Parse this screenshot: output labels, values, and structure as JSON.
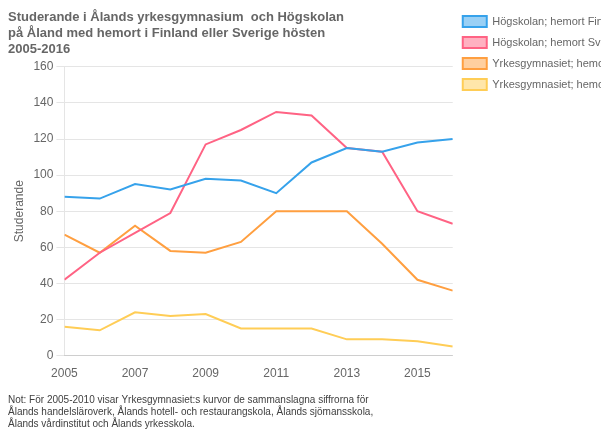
{
  "chart_data": {
    "type": "line",
    "title": "Studerande i Ålands yrkesgymnasium  och Högskolan\npå Åland med hemort i Finland eller Sverige hösten\n2005-2016",
    "ylabel": "Studerande",
    "annotation": "Not: För 2005-2010 visar Yrkesgymnasiet:s kurvor de sammanslagna siffrorna för\nÅlands handelsläroverk, Ålands hotell- och restaurangskola, Ålands sjömansskola,\nÅlands vårdinstitut och Ålands yrkesskola.",
    "x": [
      2005,
      2006,
      2007,
      2008,
      2009,
      2010,
      2011,
      2012,
      2013,
      2014,
      2015,
      2016
    ],
    "series": [
      {
        "name": "Högskolan; hemort Finland",
        "values": [
          88,
          87,
          95,
          92,
          98,
          97,
          90,
          107,
          115,
          113,
          118,
          120
        ]
      },
      {
        "name": "Högskolan; hemort Sverige",
        "values": [
          42,
          57,
          68,
          79,
          117,
          125,
          135,
          133,
          115,
          113,
          80,
          73
        ]
      },
      {
        "name": "Yrkesgymnasiet; hemort Finland",
        "values": [
          67,
          57,
          72,
          58,
          57,
          63,
          80,
          80,
          80,
          62,
          42,
          36
        ]
      },
      {
        "name": "Yrkesgymnasiet; hemort Sverige",
        "values": [
          16,
          14,
          24,
          22,
          23,
          15,
          15,
          15,
          9,
          9,
          8,
          5
        ]
      }
    ],
    "xlim": [
      2005,
      2016
    ],
    "xticks": [
      2005,
      2007,
      2009,
      2011,
      2013,
      2015
    ],
    "ylim": [
      0,
      160
    ],
    "yticks": [
      0,
      20,
      40,
      60,
      80,
      100,
      120,
      140,
      160
    ],
    "grid": "y",
    "legend": "right"
  }
}
